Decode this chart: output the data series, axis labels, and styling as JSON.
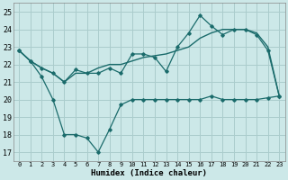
{
  "xlabel": "Humidex (Indice chaleur)",
  "xlim": [
    -0.5,
    23.5
  ],
  "ylim": [
    16.5,
    25.5
  ],
  "yticks": [
    17,
    18,
    19,
    20,
    21,
    22,
    23,
    24,
    25
  ],
  "xticks": [
    0,
    1,
    2,
    3,
    4,
    5,
    6,
    7,
    8,
    9,
    10,
    11,
    12,
    13,
    14,
    15,
    16,
    17,
    18,
    19,
    20,
    21,
    22,
    23
  ],
  "bg_color": "#cce8e8",
  "grid_color": "#aacccc",
  "line_color": "#1a6b6b",
  "line1_x": [
    0,
    1,
    2,
    3,
    4,
    5,
    6,
    7,
    8,
    9,
    10,
    11,
    12,
    13,
    14,
    15,
    16,
    17,
    18,
    19,
    20,
    21,
    22,
    23
  ],
  "line1_y": [
    22.8,
    22.2,
    21.3,
    20.0,
    18.0,
    18.0,
    17.8,
    17.0,
    18.3,
    19.7,
    20.0,
    20.0,
    20.0,
    20.0,
    20.0,
    20.0,
    20.0,
    20.2,
    20.0,
    20.0,
    20.0,
    20.0,
    20.1,
    20.2
  ],
  "line2_x": [
    0,
    1,
    2,
    3,
    4,
    5,
    6,
    7,
    8,
    9,
    10,
    11,
    12,
    13,
    14,
    15,
    16,
    17,
    18,
    19,
    20,
    21,
    22,
    23
  ],
  "line2_y": [
    22.8,
    22.2,
    21.8,
    21.5,
    21.0,
    21.7,
    21.5,
    21.5,
    21.8,
    21.5,
    22.6,
    22.6,
    22.4,
    21.6,
    23.0,
    23.8,
    24.8,
    24.2,
    23.7,
    24.0,
    24.0,
    23.7,
    22.8,
    20.2
  ],
  "line3_x": [
    0,
    1,
    2,
    3,
    4,
    5,
    6,
    7,
    8,
    9,
    10,
    11,
    12,
    13,
    14,
    15,
    16,
    17,
    18,
    19,
    20,
    21,
    22,
    23
  ],
  "line3_y": [
    22.8,
    22.2,
    21.8,
    21.5,
    21.0,
    21.5,
    21.5,
    21.8,
    22.0,
    22.0,
    22.2,
    22.4,
    22.5,
    22.6,
    22.8,
    23.0,
    23.5,
    23.8,
    24.0,
    24.0,
    24.0,
    23.8,
    23.0,
    20.2
  ]
}
